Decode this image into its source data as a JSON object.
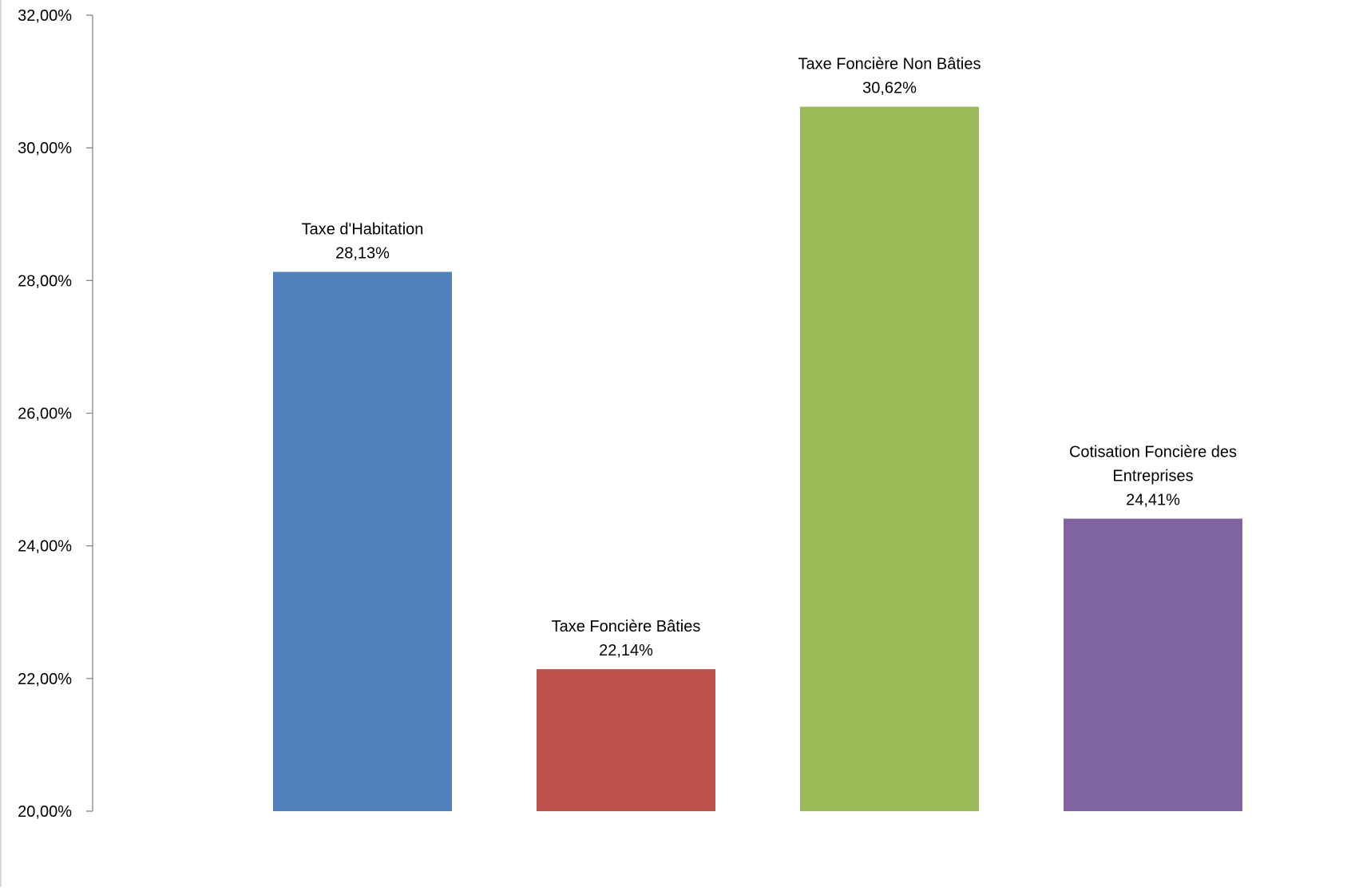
{
  "chart_data": {
    "type": "bar",
    "title": "",
    "xlabel": "",
    "ylabel": "",
    "ylim": [
      20,
      32
    ],
    "y_ticks": [
      20,
      22,
      24,
      26,
      28,
      30,
      32
    ],
    "y_tick_labels": [
      "20,00%",
      "22,00%",
      "24,00%",
      "26,00%",
      "28,00%",
      "30,00%",
      "32,00%"
    ],
    "grid": false,
    "legend": "none",
    "categories": [
      "Taxe d'Habitation",
      "Taxe Foncière Bâties",
      "Taxe Foncière Non Bâties",
      "Cotisation Foncière des Entreprises"
    ],
    "category_label_lines": [
      [
        "Taxe d'Habitation"
      ],
      [
        "Taxe Foncière Bâties"
      ],
      [
        "Taxe Foncière Non Bâties"
      ],
      [
        "Cotisation Foncière des",
        "Entreprises"
      ]
    ],
    "values": [
      28.13,
      22.14,
      30.62,
      24.41
    ],
    "value_labels": [
      "28,13%",
      "22,14%",
      "30,62%",
      "24,41%"
    ],
    "colors": [
      "#4F81BD",
      "#C0504D",
      "#9BBB59",
      "#8064A2"
    ]
  }
}
